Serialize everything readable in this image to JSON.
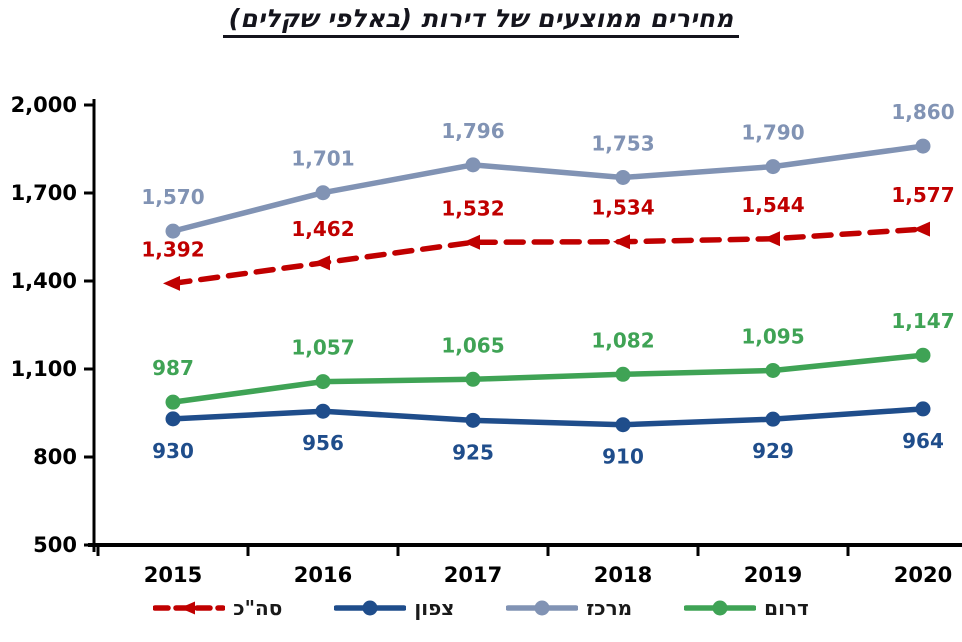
{
  "chart_data": {
    "type": "line",
    "title": "מחירים ממוצעים של דירות (באלפי שקלים)",
    "categories": [
      "2015",
      "2016",
      "2017",
      "2018",
      "2019",
      "2020"
    ],
    "series": [
      {
        "key": "total",
        "name": "סה\"כ",
        "values": [
          1392,
          1462,
          1532,
          1534,
          1544,
          1577
        ],
        "color": "#c00000",
        "dashed": true,
        "marker": "triangle",
        "label_position": "above"
      },
      {
        "key": "north",
        "name": "צפון",
        "values": [
          930,
          956,
          925,
          910,
          929,
          964
        ],
        "color": "#1f4d8b",
        "dashed": false,
        "marker": "circle",
        "label_position": "below"
      },
      {
        "key": "center",
        "name": "מרכז",
        "values": [
          1570,
          1701,
          1796,
          1753,
          1790,
          1860
        ],
        "color": "#8193b4",
        "dashed": false,
        "marker": "circle",
        "label_position": "above"
      },
      {
        "key": "south",
        "name": "דרום",
        "values": [
          987,
          1057,
          1065,
          1082,
          1095,
          1147
        ],
        "color": "#3fa355",
        "dashed": false,
        "marker": "circle",
        "label_position": "above"
      }
    ],
    "y_axis": {
      "min": 500,
      "max": 2000,
      "step": 300,
      "tick_labels": [
        "500",
        "800",
        "1,100",
        "1,400",
        "1,700",
        "2,000"
      ]
    },
    "x_axis": {
      "tick_labels": [
        "2015",
        "2016",
        "2017",
        "2018",
        "2019",
        "2020"
      ]
    },
    "legend_position": "bottom",
    "legend_order": [
      "סה\"כ",
      "צפון",
      "מרכז",
      "דרום"
    ],
    "grid": false,
    "data_labels": true,
    "axis_color": "#000000",
    "background_color": "#ffffff"
  }
}
